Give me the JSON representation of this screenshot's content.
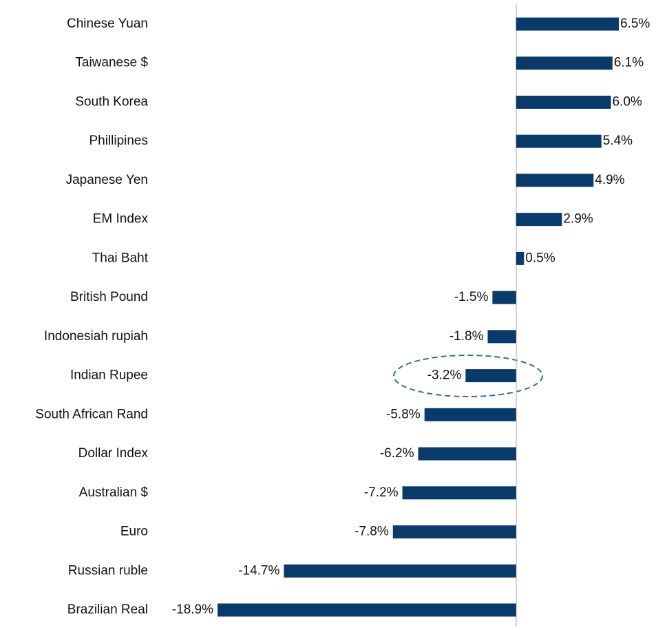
{
  "chart_data": {
    "type": "bar",
    "orientation": "horizontal",
    "categories": [
      "Chinese Yuan",
      "Taiwanese $",
      "South Korea",
      "Phillipines",
      "Japanese Yen",
      "EM Index",
      "Thai Baht",
      "British Pound",
      "Indonesiah rupiah",
      "Indian Rupee",
      "South African Rand",
      "Dollar Index",
      "Australian $",
      "Euro",
      "Russian ruble",
      "Brazilian Real"
    ],
    "values": [
      6.5,
      6.1,
      6.0,
      5.4,
      4.9,
      2.9,
      0.5,
      -1.5,
      -1.8,
      -3.2,
      -5.8,
      -6.2,
      -7.2,
      -7.8,
      -14.7,
      -18.9
    ],
    "value_labels": [
      "6.5%",
      "6.1%",
      "6.0%",
      "5.4%",
      "4.9%",
      "2.9%",
      "0.5%",
      "-1.5%",
      "-1.8%",
      "-3.2%",
      "-5.8%",
      "-6.2%",
      "-7.2%",
      "-7.8%",
      "-14.7%",
      "-18.9%"
    ],
    "color": "#0a3a6a"
  }
}
